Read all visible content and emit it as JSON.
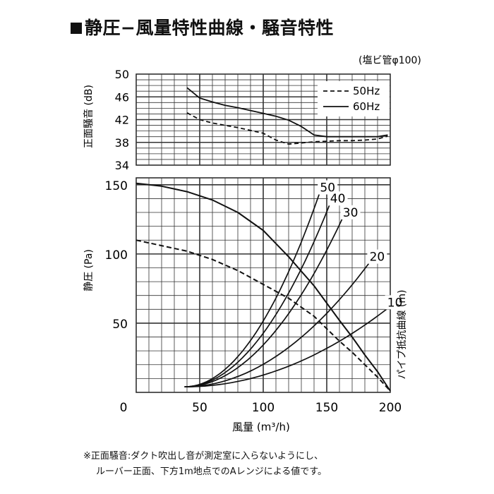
{
  "title": "静圧−風量特性曲線・騒音特性",
  "pipe_note": "(塩ビ管φ100)",
  "xlabel": "風量 (m³/h)",
  "footnote": {
    "line1": "※正面騒音:ダクト吹出し音が測定室に入らないようにし、",
    "line2": "ルーバー正面、下方1m地点でのAレンジによる値です。"
  },
  "chart_data": [
    {
      "type": "line",
      "name": "noise",
      "ylabel": "正面騒音 (dB)",
      "xlim": [
        0,
        200
      ],
      "ylim": [
        34,
        50
      ],
      "yticks": [
        "50",
        "46",
        "42",
        "38",
        "34"
      ],
      "legend": "top-right",
      "series": [
        {
          "name": "50Hz",
          "style": "dashed",
          "x": [
            40,
            50,
            60,
            70,
            80,
            90,
            100,
            110,
            120,
            130,
            140,
            150,
            160,
            170,
            180,
            190,
            198
          ],
          "y": [
            43.2,
            42,
            41.4,
            41,
            40.6,
            40.1,
            39.6,
            38.4,
            37.7,
            37.9,
            38.1,
            38.2,
            38.3,
            38.3,
            38.4,
            38.6,
            39.1
          ]
        },
        {
          "name": "60Hz",
          "style": "solid",
          "x": [
            40,
            50,
            60,
            70,
            80,
            90,
            100,
            110,
            120,
            130,
            140,
            150,
            160,
            170,
            180,
            190,
            198
          ],
          "y": [
            47.6,
            45.8,
            45.1,
            44.5,
            44.1,
            43.6,
            43.1,
            42.6,
            41.9,
            40.8,
            39.3,
            39.0,
            39.0,
            39.0,
            39.0,
            39.0,
            39.3
          ]
        }
      ]
    },
    {
      "type": "line",
      "name": "static-pressure",
      "ylabel": "静圧 (Pa)",
      "y2label": "パイプ抵抗曲線 (m)",
      "xlim": [
        0,
        200
      ],
      "ylim": [
        0,
        155
      ],
      "xticks": [
        "0",
        "50",
        "100",
        "150",
        "200"
      ],
      "yticks": [
        "150",
        "100",
        "50"
      ],
      "series": [
        {
          "name": "60Hz",
          "style": "solid",
          "x": [
            0,
            20,
            40,
            60,
            80,
            100,
            120,
            140,
            160,
            170,
            180,
            190,
            200
          ],
          "y": [
            151,
            149,
            145,
            139,
            130,
            117,
            98,
            77,
            52,
            40,
            27,
            15,
            1
          ]
        },
        {
          "name": "50Hz",
          "style": "dashed",
          "x": [
            0,
            20,
            40,
            60,
            80,
            100,
            120,
            140,
            160,
            170,
            180,
            190,
            200
          ],
          "y": [
            110,
            106,
            102,
            96,
            88,
            78,
            68,
            55,
            37,
            29,
            20,
            11,
            1
          ]
        }
      ],
      "pipe_curves": [
        {
          "label": "50",
          "x_end": 144,
          "y_end": 143
        },
        {
          "label": "40",
          "x_end": 152,
          "y_end": 135
        },
        {
          "label": "30",
          "x_end": 162,
          "y_end": 125
        },
        {
          "label": "20",
          "x_end": 183,
          "y_end": 93
        },
        {
          "label": "10",
          "x_end": 197,
          "y_end": 60
        }
      ],
      "pipe_x_start": 38,
      "pipe_y_start": 4
    }
  ]
}
